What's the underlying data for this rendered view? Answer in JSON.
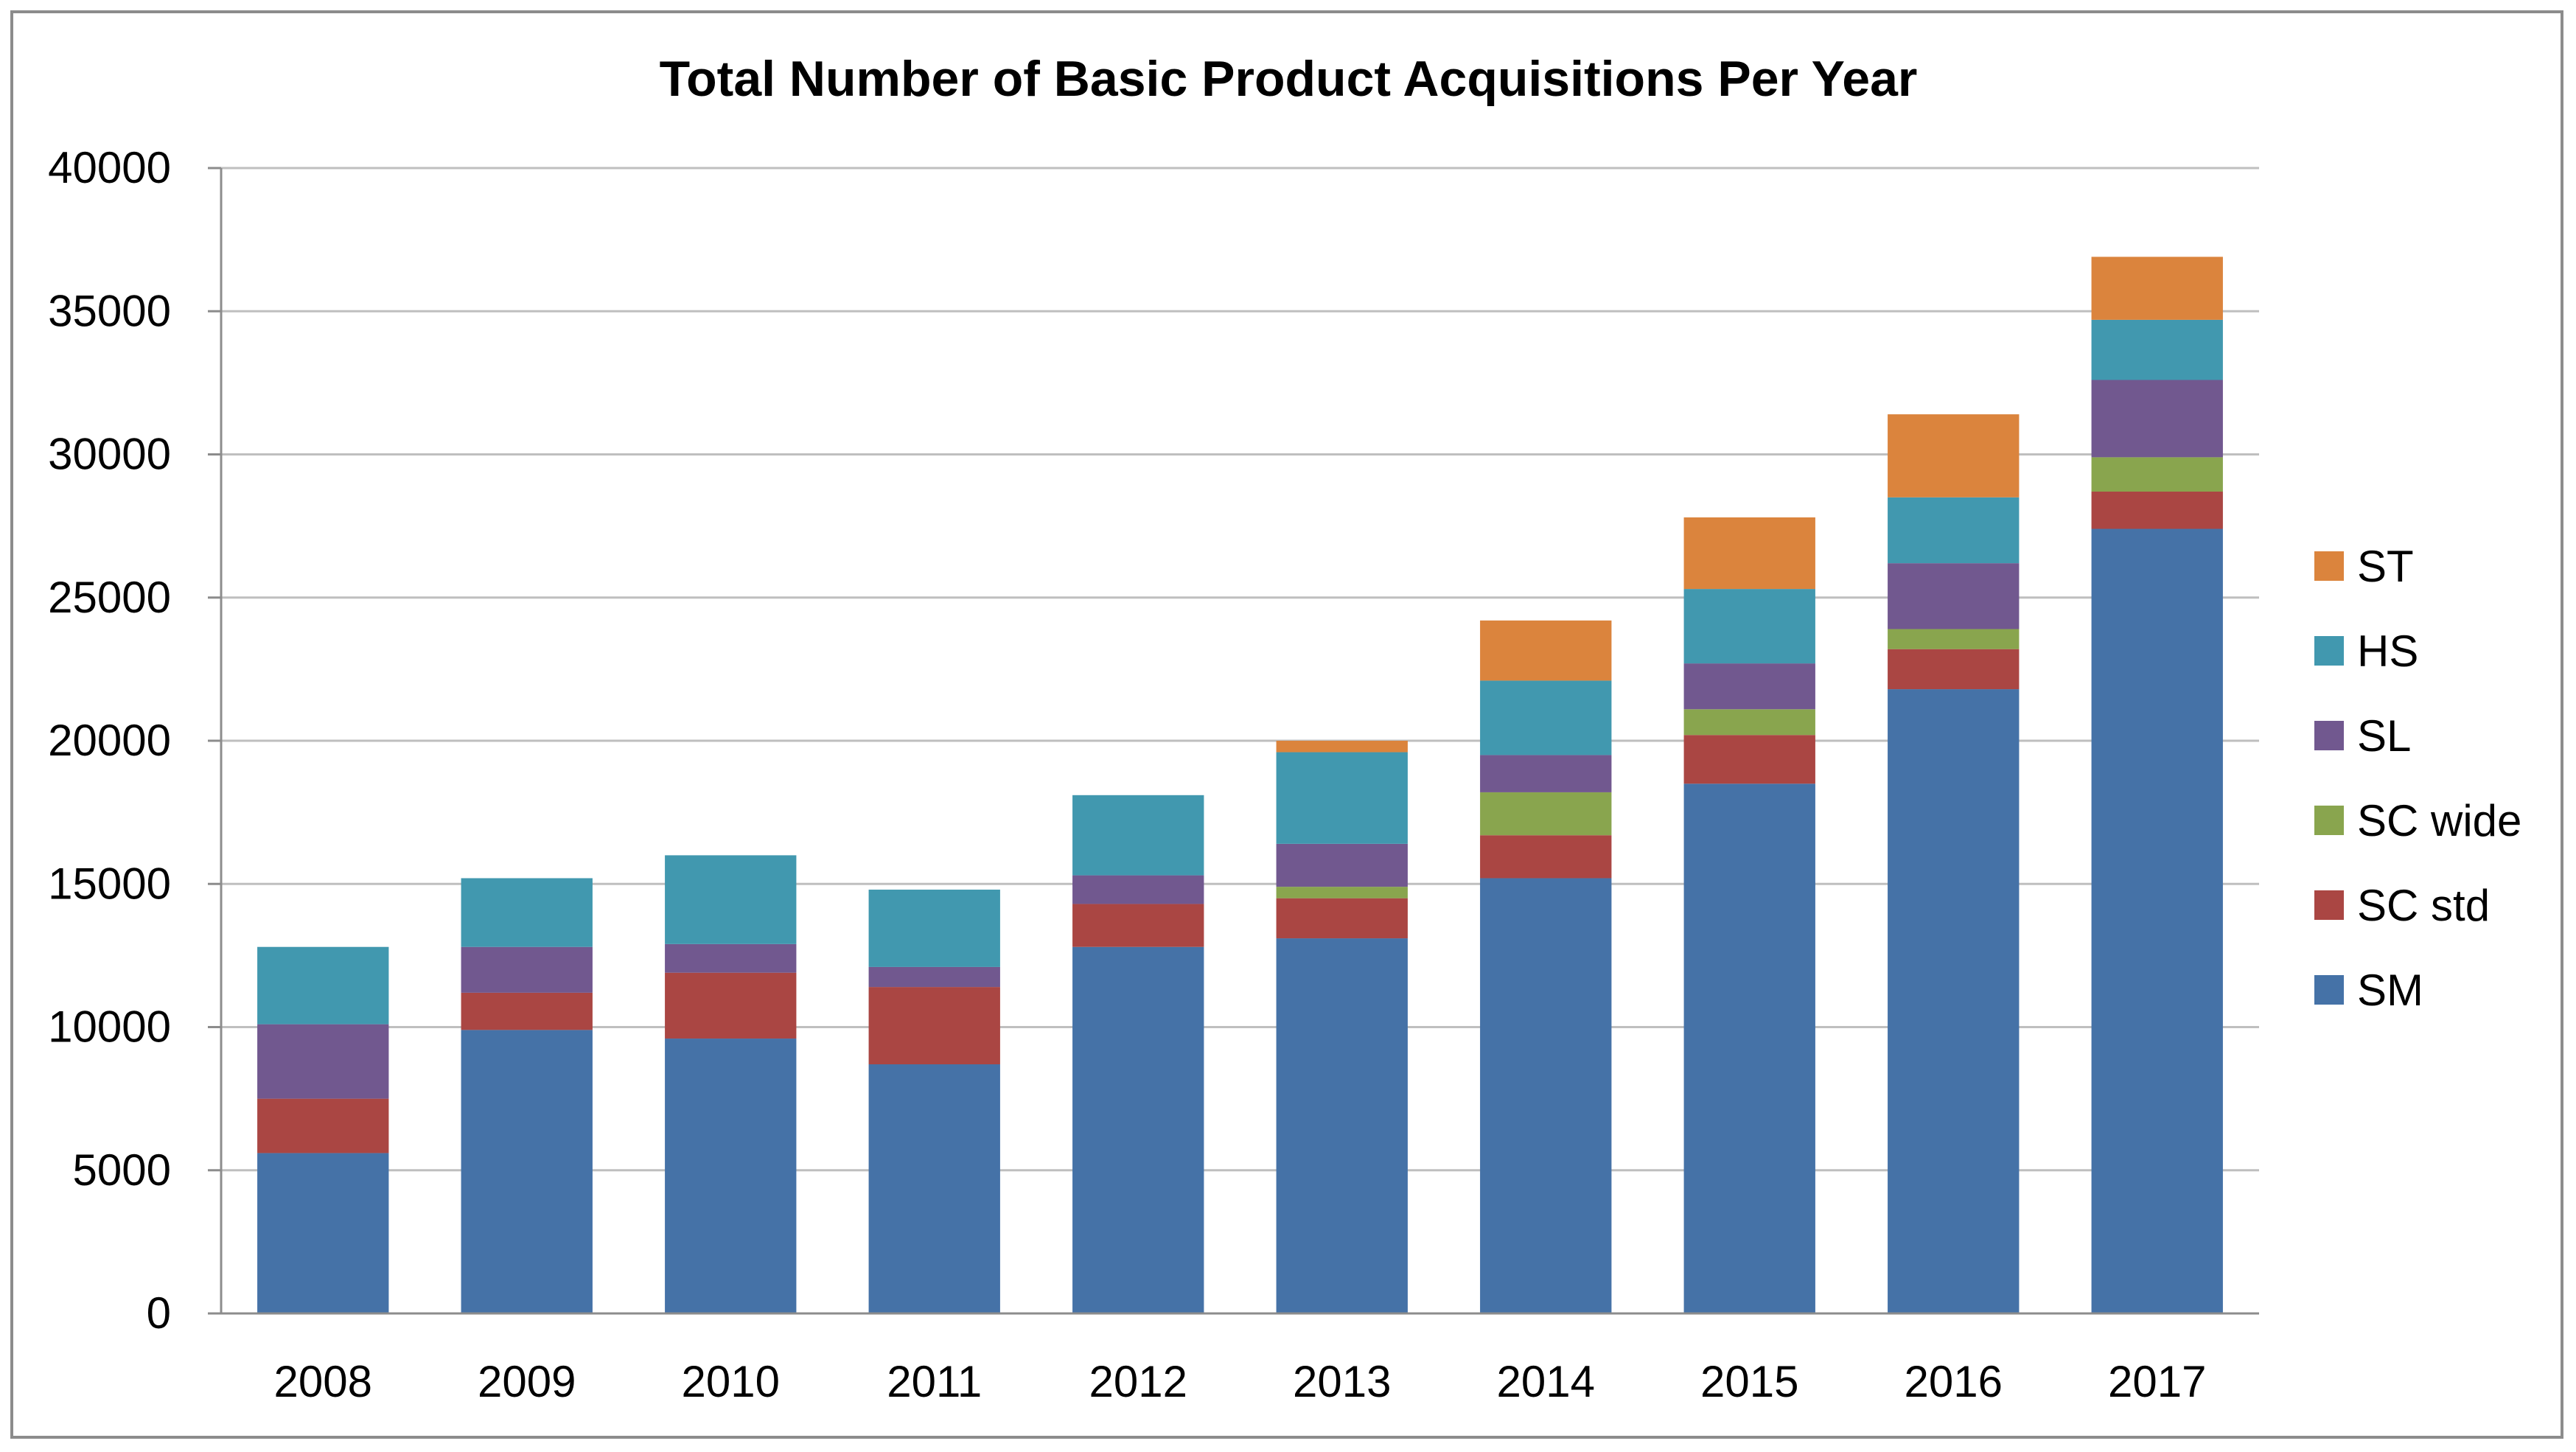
{
  "chart_data": {
    "type": "bar",
    "stacked": true,
    "title": "Total Number of Basic Product Acquisitions Per Year",
    "xlabel": "",
    "ylabel": "",
    "ylim": [
      0,
      40000
    ],
    "yticks": [
      0,
      5000,
      10000,
      15000,
      20000,
      25000,
      30000,
      35000,
      40000
    ],
    "ytick_labels": [
      "0",
      "5000",
      "10000",
      "15000",
      "20000",
      "25000",
      "30000",
      "35000",
      "40000"
    ],
    "grid": true,
    "legend_position": "right",
    "categories": [
      "2008",
      "2009",
      "2010",
      "2011",
      "2012",
      "2013",
      "2014",
      "2015",
      "2016",
      "2017"
    ],
    "series": [
      {
        "name": "SM",
        "color": "#4572a7",
        "values": [
          5600,
          9900,
          9600,
          8700,
          12800,
          13100,
          15200,
          18500,
          21800,
          27400
        ]
      },
      {
        "name": "SC std",
        "color": "#aa4643",
        "values": [
          1900,
          1300,
          2300,
          2700,
          1500,
          1400,
          1500,
          1700,
          1400,
          1300
        ]
      },
      {
        "name": "SC wide",
        "color": "#89a54e",
        "values": [
          0,
          0,
          0,
          0,
          0,
          400,
          1500,
          900,
          700,
          1200
        ]
      },
      {
        "name": "SL",
        "color": "#71588f",
        "values": [
          2600,
          1600,
          1000,
          700,
          1000,
          1500,
          1300,
          1600,
          2300,
          2700
        ]
      },
      {
        "name": "HS",
        "color": "#4198af",
        "values": [
          2700,
          2400,
          3100,
          2700,
          2800,
          3200,
          2600,
          2600,
          2300,
          2100
        ]
      },
      {
        "name": "ST",
        "color": "#db843d",
        "values": [
          0,
          0,
          0,
          0,
          0,
          400,
          2100,
          2500,
          2900,
          2200
        ]
      }
    ]
  }
}
